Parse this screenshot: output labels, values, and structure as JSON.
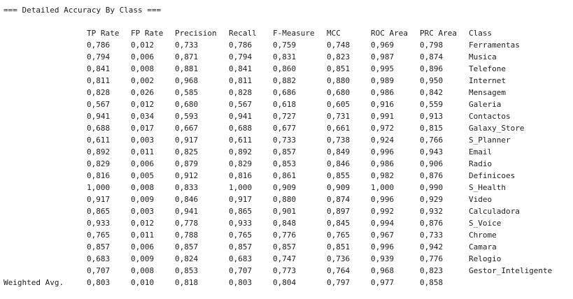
{
  "title": "=== Detailed Accuracy By Class ===",
  "columns": [
    "TP Rate",
    "FP Rate",
    "Precision",
    "Recall",
    "F-Measure",
    "MCC",
    "ROC Area",
    "PRC Area",
    "Class"
  ],
  "rows": [
    [
      "0,786",
      "0,012",
      "0,733",
      "0,786",
      "0,759",
      "0,748",
      "0,969",
      "0,798",
      "Ferramentas"
    ],
    [
      "0,794",
      "0,006",
      "0,871",
      "0,794",
      "0,831",
      "0,823",
      "0,987",
      "0,874",
      "Musica"
    ],
    [
      "0,841",
      "0,008",
      "0,881",
      "0,841",
      "0,860",
      "0,851",
      "0,995",
      "0,896",
      "Telefone"
    ],
    [
      "0,811",
      "0,002",
      "0,968",
      "0,811",
      "0,882",
      "0,880",
      "0,989",
      "0,950",
      "Internet"
    ],
    [
      "0,828",
      "0,026",
      "0,585",
      "0,828",
      "0,686",
      "0,680",
      "0,986",
      "0,842",
      "Mensagem"
    ],
    [
      "0,567",
      "0,012",
      "0,680",
      "0,567",
      "0,618",
      "0,605",
      "0,916",
      "0,559",
      "Galeria"
    ],
    [
      "0,941",
      "0,034",
      "0,593",
      "0,941",
      "0,727",
      "0,731",
      "0,991",
      "0,913",
      "Contactos"
    ],
    [
      "0,688",
      "0,017",
      "0,667",
      "0,688",
      "0,677",
      "0,661",
      "0,972",
      "0,815",
      "Galaxy_Store"
    ],
    [
      "0,611",
      "0,003",
      "0,917",
      "0,611",
      "0,733",
      "0,738",
      "0,924",
      "0,766",
      "S_Planner"
    ],
    [
      "0,892",
      "0,011",
      "0,825",
      "0,892",
      "0,857",
      "0,849",
      "0,996",
      "0,943",
      "Email"
    ],
    [
      "0,829",
      "0,006",
      "0,879",
      "0,829",
      "0,853",
      "0,846",
      "0,986",
      "0,906",
      "Radio"
    ],
    [
      "0,816",
      "0,005",
      "0,912",
      "0,816",
      "0,861",
      "0,855",
      "0,982",
      "0,876",
      "Definicoes"
    ],
    [
      "1,000",
      "0,008",
      "0,833",
      "1,000",
      "0,909",
      "0,909",
      "1,000",
      "0,990",
      "S_Health"
    ],
    [
      "0,917",
      "0,009",
      "0,846",
      "0,917",
      "0,880",
      "0,874",
      "0,996",
      "0,929",
      "Video"
    ],
    [
      "0,865",
      "0,003",
      "0,941",
      "0,865",
      "0,901",
      "0,897",
      "0,992",
      "0,932",
      "Calculadora"
    ],
    [
      "0,933",
      "0,012",
      "0,778",
      "0,933",
      "0,848",
      "0,845",
      "0,994",
      "0,876",
      "S_Voice"
    ],
    [
      "0,765",
      "0,011",
      "0,788",
      "0,765",
      "0,776",
      "0,765",
      "0,967",
      "0,733",
      "Chrome"
    ],
    [
      "0,857",
      "0,006",
      "0,857",
      "0,857",
      "0,857",
      "0,851",
      "0,996",
      "0,942",
      "Camara"
    ],
    [
      "0,683",
      "0,009",
      "0,824",
      "0,683",
      "0,747",
      "0,736",
      "0,939",
      "0,776",
      "Relogio"
    ],
    [
      "0,707",
      "0,008",
      "0,853",
      "0,707",
      "0,773",
      "0,764",
      "0,968",
      "0,823",
      "Gestor_Inteligente"
    ]
  ],
  "weighted": {
    "label": "Weighted Avg.",
    "values": [
      "0,803",
      "0,010",
      "0,818",
      "0,803",
      "0,804",
      "0,797",
      "0,977",
      "0,858"
    ]
  }
}
